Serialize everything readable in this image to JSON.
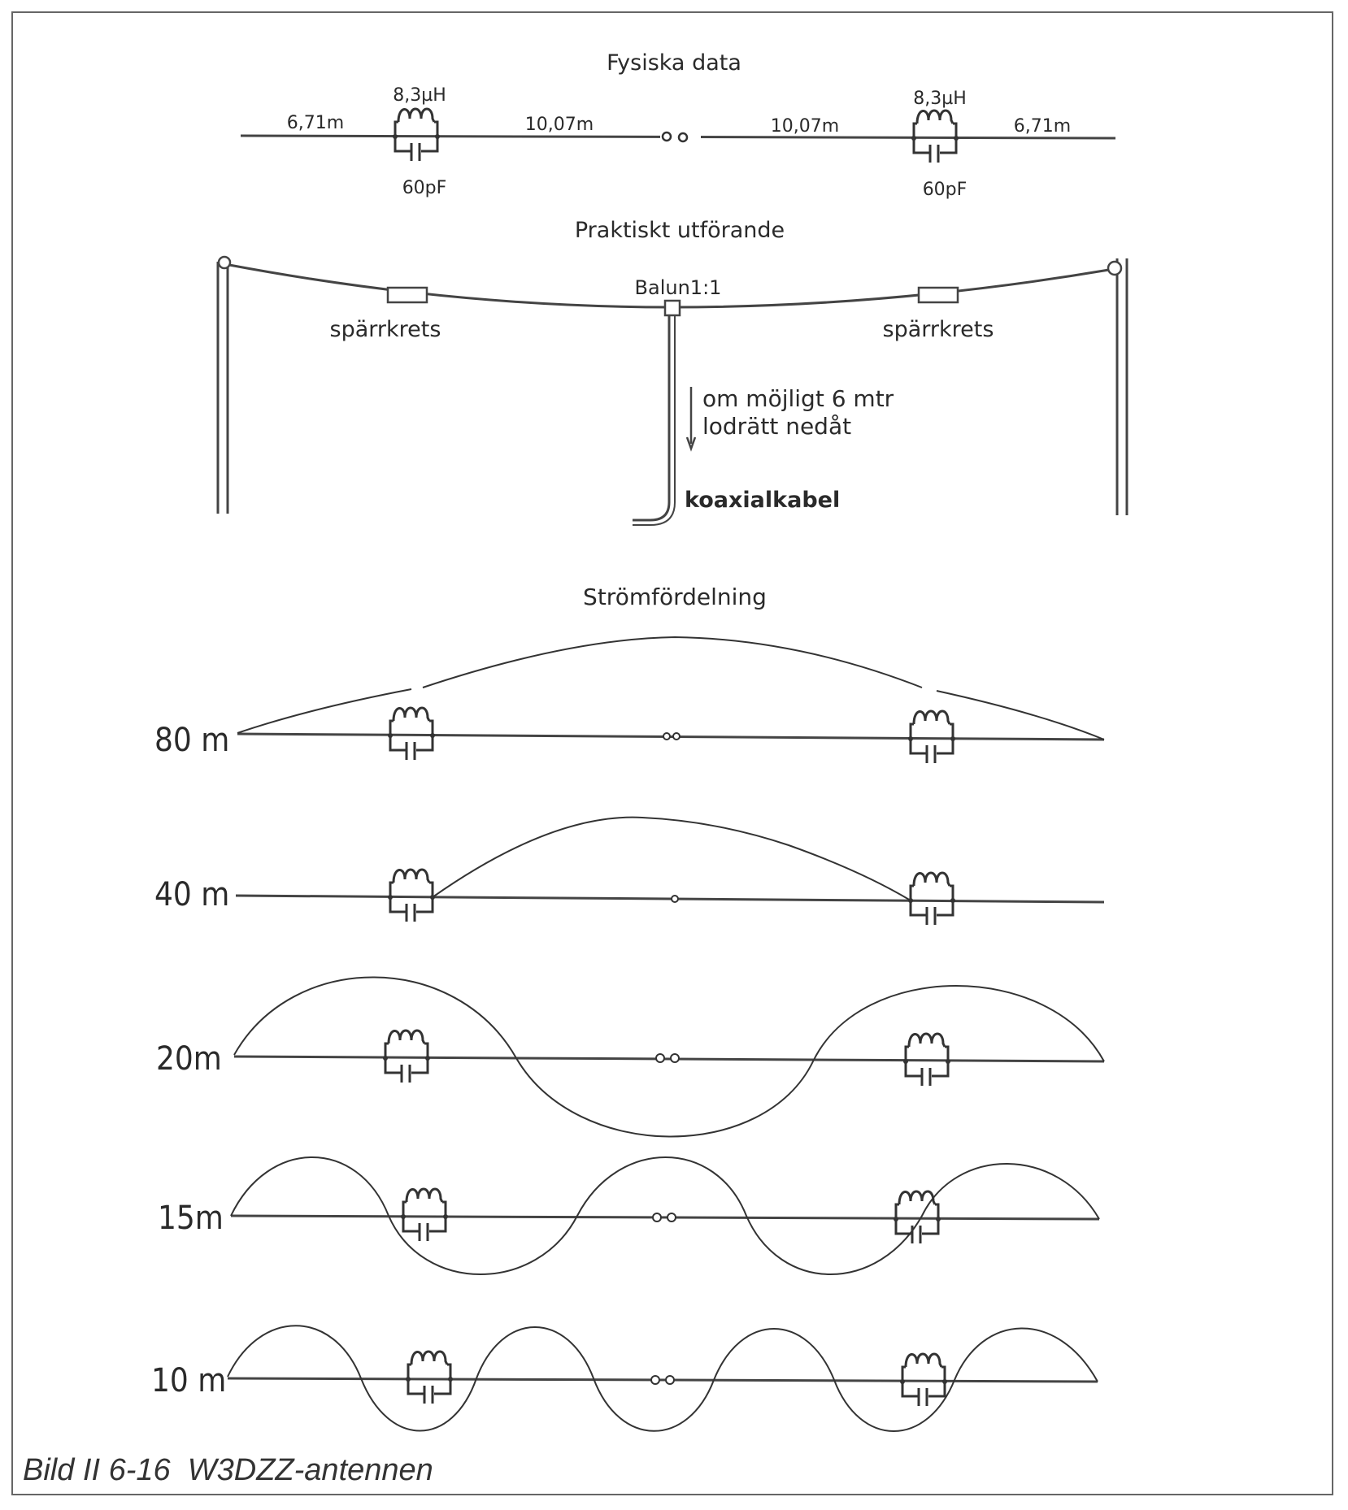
{
  "physical": {
    "title": "Fysiska data",
    "outer_left_length": "6,71m",
    "inner_left_length": "10,07m",
    "inner_right_length": "10,07m",
    "outer_right_length": "6,71m",
    "inductance_left": "8,3µH",
    "inductance_right": "8,3µH",
    "capacitance_left": "60pF",
    "capacitance_right": "60pF"
  },
  "practical": {
    "title": "Praktiskt utförande",
    "trap_left": "spärrkrets",
    "trap_right": "spärrkrets",
    "balun": "Balun1:1",
    "feed_note_line1": "om möjligt 6 mtr",
    "feed_note_line2": "lodrätt nedåt",
    "coax": "koaxialkabel"
  },
  "current": {
    "title": "Strömfördelning",
    "bands": [
      {
        "label": "80 m",
        "half_waves": 1,
        "pattern": "single-hump"
      },
      {
        "label": "40 m",
        "half_waves": 1,
        "pattern": "center-hump-between-traps"
      },
      {
        "label": "20m",
        "half_waves": 3,
        "pattern": "full-wave"
      },
      {
        "label": "15m",
        "half_waves": 5,
        "pattern": "full-wave"
      },
      {
        "label": "10 m",
        "half_waves": 7,
        "pattern": "full-wave"
      }
    ]
  },
  "caption": {
    "figure": "Bild II 6-16",
    "title": "W3DZZ-antennen"
  }
}
